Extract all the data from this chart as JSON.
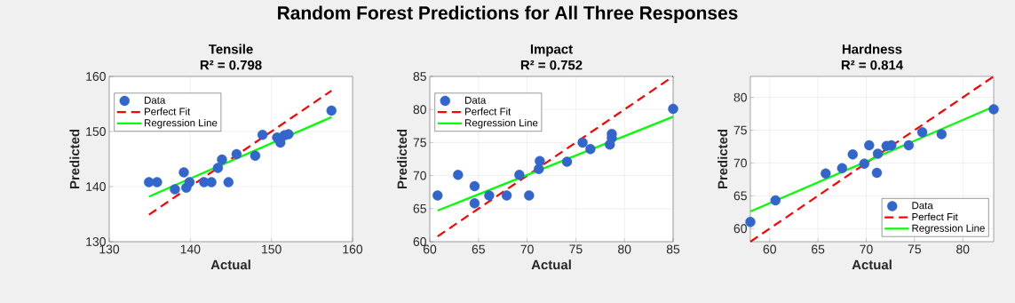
{
  "chart_data": [
    {
      "type": "scatter",
      "title": "Tensile",
      "subtitle": "R² = 0.798",
      "xlabel": "Actual",
      "ylabel": "Predicted",
      "xlim": [
        130,
        160
      ],
      "ylim": [
        130,
        160
      ],
      "xticks": [
        130,
        140,
        150,
        160
      ],
      "yticks": [
        130,
        140,
        150,
        160
      ],
      "grid": true,
      "legend": "top left",
      "series": [
        {
          "name": "Data",
          "marker": "circle",
          "color": "#3366cc",
          "x": [
            134.9,
            135.9,
            138.1,
            139.2,
            139.5,
            139.9,
            141.7,
            142.6,
            143.4,
            143.9,
            144.7,
            145.7,
            148.0,
            148.9,
            150.7,
            151.1,
            151.6,
            152.1,
            157.4
          ],
          "values": [
            140.8,
            140.8,
            139.5,
            142.6,
            139.8,
            140.8,
            140.8,
            140.8,
            143.4,
            144.9,
            140.8,
            145.9,
            145.6,
            149.4,
            148.9,
            148.0,
            149.3,
            149.5,
            153.8
          ]
        },
        {
          "name": "Perfect Fit",
          "type": "line",
          "marker": "none",
          "line_style": "dashed",
          "color": "#ff0000",
          "x": [
            134.9,
            157.4
          ],
          "values": [
            134.9,
            157.4
          ]
        },
        {
          "name": "Regression Line",
          "type": "line",
          "marker": "none",
          "line_style": "solid",
          "color": "#00ff00",
          "x": [
            134.9,
            157.4
          ],
          "values": [
            138.2,
            152.6
          ]
        }
      ]
    },
    {
      "type": "scatter",
      "title": "Impact",
      "subtitle": "R² = 0.752",
      "xlabel": "Actual",
      "ylabel": "Predicted",
      "annotations": [
        "Random Forest Predictions for All Three Responses"
      ],
      "xlim": [
        60,
        85
      ],
      "ylim": [
        60,
        85
      ],
      "xticks": [
        60,
        65,
        70,
        75,
        80,
        85
      ],
      "yticks": [
        60,
        65,
        70,
        75,
        80,
        85
      ],
      "grid": true,
      "legend": "top left",
      "series": [
        {
          "name": "Data",
          "marker": "circle",
          "color": "#3366cc",
          "x": [
            60.8,
            62.9,
            64.6,
            64.6,
            66.1,
            67.9,
            69.2,
            70.2,
            71.2,
            71.3,
            74.1,
            75.7,
            76.5,
            78.5,
            78.7,
            78.7,
            85.0
          ],
          "values": [
            67.0,
            70.1,
            68.4,
            65.8,
            67.0,
            67.0,
            70.1,
            67.0,
            71.0,
            72.2,
            72.1,
            75.0,
            74.0,
            74.7,
            76.3,
            75.7,
            80.1
          ]
        },
        {
          "name": "Perfect Fit",
          "type": "line",
          "marker": "none",
          "line_style": "dashed",
          "color": "#ff0000",
          "x": [
            60.8,
            85.0
          ],
          "values": [
            60.8,
            85.0
          ]
        },
        {
          "name": "Regression Line",
          "type": "line",
          "marker": "none",
          "line_style": "solid",
          "color": "#00ff00",
          "x": [
            60.8,
            85.0
          ],
          "values": [
            64.7,
            78.9
          ]
        }
      ]
    },
    {
      "type": "scatter",
      "title": "Hardness",
      "subtitle": "R² = 0.814",
      "xlabel": "Actual",
      "ylabel": "Predicted",
      "xlim": [
        58,
        83.2
      ],
      "ylim": [
        58,
        83.2
      ],
      "xticks": [
        60,
        65,
        70,
        75,
        80
      ],
      "yticks": [
        60,
        65,
        70,
        75,
        80
      ],
      "grid": true,
      "legend": "bottom right",
      "series": [
        {
          "name": "Data",
          "marker": "circle",
          "color": "#3366cc",
          "x": [
            58.0,
            60.6,
            65.8,
            67.5,
            68.6,
            69.8,
            70.3,
            71.1,
            71.2,
            72.1,
            72.6,
            74.4,
            75.8,
            77.8,
            83.2
          ],
          "values": [
            61.0,
            64.3,
            68.4,
            69.2,
            71.3,
            69.9,
            72.7,
            68.5,
            71.4,
            72.6,
            72.7,
            72.7,
            74.7,
            74.4,
            78.2
          ]
        },
        {
          "name": "Perfect Fit",
          "type": "line",
          "marker": "none",
          "line_style": "dashed",
          "color": "#ff0000",
          "x": [
            58.0,
            83.2
          ],
          "values": [
            58.0,
            83.2
          ]
        },
        {
          "name": "Regression Line",
          "type": "line",
          "marker": "none",
          "line_style": "solid",
          "color": "#00ff00",
          "x": [
            58.0,
            83.2
          ],
          "values": [
            62.6,
            78.6
          ]
        }
      ]
    }
  ]
}
